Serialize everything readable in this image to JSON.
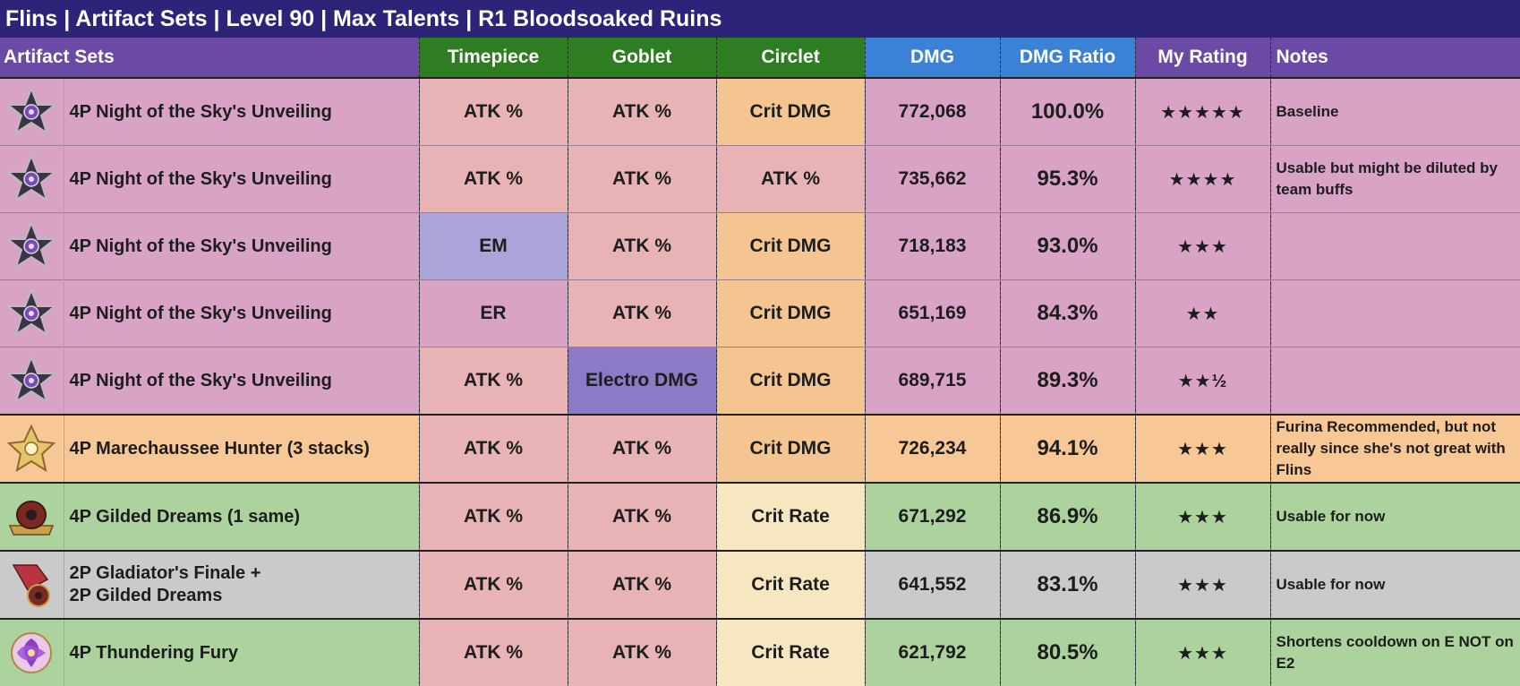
{
  "title": "Flins | Artifact Sets | Level 90 | Max Talents | R1 Bloodsoaked Ruins",
  "headers": {
    "artifact_sets": "Artifact Sets",
    "timepiece": "Timepiece",
    "goblet": "Goblet",
    "circlet": "Circlet",
    "dmg": "DMG",
    "dmg_ratio": "DMG Ratio",
    "my_rating": "My Rating",
    "notes": "Notes"
  },
  "colors": {
    "header_sets": "#6a4aa5",
    "header_mainstats": "#2f7d22",
    "header_dmg": "#3b82d6",
    "header_rating": "#6a4aa5",
    "row_pink": "#d9a3c6",
    "row_orange": "#f7c795",
    "row_green": "#acd39e",
    "row_gray": "#cacaca",
    "cell_atk": "#e8b3b5",
    "cell_em": "#aaa4d8",
    "cell_electro": "#8c7ac7",
    "cell_crit_dmg": "#f5c591",
    "cell_crit_rate": "#f6e7c1"
  },
  "rows": [
    {
      "icon": "night-sky-unveiling-icon",
      "set": "4P Night of the Sky's Unveiling",
      "timepiece": "ATK %",
      "goblet": "ATK %",
      "circlet": "Crit DMG",
      "dmg": "772,068",
      "ratio": "100.0%",
      "rating": "★★★★★",
      "notes": "Baseline",
      "row_color": "pink",
      "timepiece_color": "atk",
      "goblet_color": "atk",
      "circlet_color": "crit_dmg"
    },
    {
      "icon": "night-sky-unveiling-icon",
      "set": "4P Night of the Sky's Unveiling",
      "timepiece": "ATK %",
      "goblet": "ATK %",
      "circlet": "ATK %",
      "dmg": "735,662",
      "ratio": "95.3%",
      "rating": "★★★★",
      "notes": "Usable but might be diluted by team buffs",
      "row_color": "pink",
      "timepiece_color": "atk",
      "goblet_color": "atk",
      "circlet_color": "atk"
    },
    {
      "icon": "night-sky-unveiling-icon",
      "set": "4P Night of the Sky's Unveiling",
      "timepiece": "EM",
      "goblet": "ATK %",
      "circlet": "Crit DMG",
      "dmg": "718,183",
      "ratio": "93.0%",
      "rating": "★★★",
      "notes": "",
      "row_color": "pink",
      "timepiece_color": "em",
      "goblet_color": "atk",
      "circlet_color": "crit_dmg"
    },
    {
      "icon": "night-sky-unveiling-icon",
      "set": "4P Night of the Sky's Unveiling",
      "timepiece": "ER",
      "goblet": "ATK %",
      "circlet": "Crit DMG",
      "dmg": "651,169",
      "ratio": "84.3%",
      "rating": "★★",
      "notes": "",
      "row_color": "pink",
      "timepiece_color": "pink",
      "goblet_color": "atk",
      "circlet_color": "crit_dmg"
    },
    {
      "icon": "night-sky-unveiling-icon",
      "set": "4P Night of the Sky's Unveiling",
      "timepiece": "ATK %",
      "goblet": "Electro DMG",
      "circlet": "Crit DMG",
      "dmg": "689,715",
      "ratio": "89.3%",
      "rating": "★★½",
      "notes": "",
      "row_color": "pink",
      "timepiece_color": "atk",
      "goblet_color": "electro",
      "circlet_color": "crit_dmg"
    },
    {
      "icon": "marechaussee-hunter-icon",
      "set": "4P Marechaussee Hunter (3 stacks)",
      "timepiece": "ATK %",
      "goblet": "ATK %",
      "circlet": "Crit DMG",
      "dmg": "726,234",
      "ratio": "94.1%",
      "rating": "★★★",
      "notes": "Furina Recommended, but not really since she's not great with Flins",
      "row_color": "orange",
      "timepiece_color": "atk",
      "goblet_color": "atk",
      "circlet_color": "crit_dmg"
    },
    {
      "icon": "gilded-dreams-icon",
      "set": "4P Gilded Dreams (1 same)",
      "timepiece": "ATK %",
      "goblet": "ATK %",
      "circlet": "Crit Rate",
      "dmg": "671,292",
      "ratio": "86.9%",
      "rating": "★★★",
      "notes": "Usable for now",
      "row_color": "green",
      "timepiece_color": "atk",
      "goblet_color": "atk",
      "circlet_color": "crit_rate"
    },
    {
      "icon": "gladiators-finale-icon",
      "set": "2P Gladiator's Finale +\n2P Gilded Dreams",
      "timepiece": "ATK %",
      "goblet": "ATK %",
      "circlet": "Crit Rate",
      "dmg": "641,552",
      "ratio": "83.1%",
      "rating": "★★★",
      "notes": "Usable for now",
      "row_color": "gray",
      "timepiece_color": "atk",
      "goblet_color": "atk",
      "circlet_color": "crit_rate"
    },
    {
      "icon": "thundering-fury-icon",
      "set": "4P Thundering Fury",
      "timepiece": "ATK %",
      "goblet": "ATK %",
      "circlet": "Crit Rate",
      "dmg": "621,792",
      "ratio": "80.5%",
      "rating": "★★★",
      "notes": "Shortens cooldown on E NOT on E2",
      "row_color": "green",
      "timepiece_color": "atk",
      "goblet_color": "atk",
      "circlet_color": "crit_rate"
    }
  ]
}
